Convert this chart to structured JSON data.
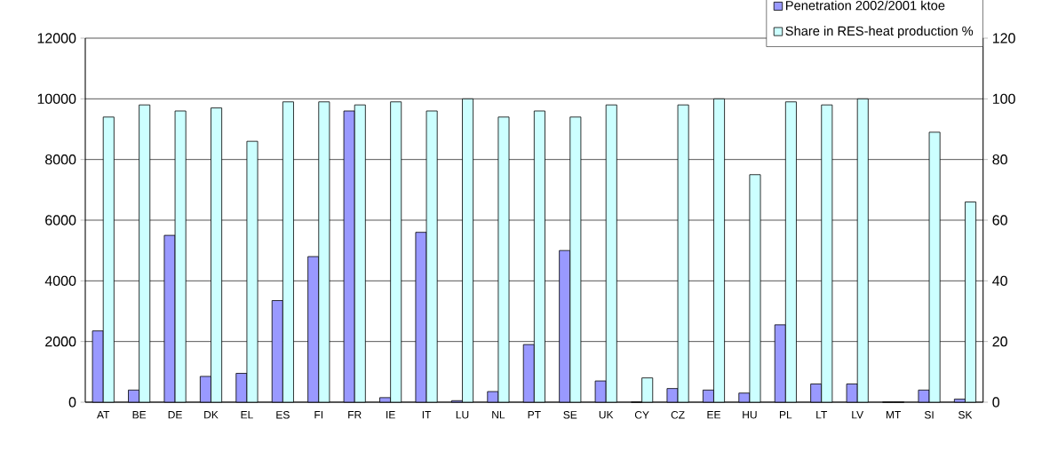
{
  "chart_data": {
    "type": "bar",
    "categories": [
      "AT",
      "BE",
      "DE",
      "DK",
      "EL",
      "ES",
      "FI",
      "FR",
      "IE",
      "IT",
      "LU",
      "NL",
      "PT",
      "SE",
      "UK",
      "CY",
      "CZ",
      "EE",
      "HU",
      "PL",
      "LT",
      "LV",
      "MT",
      "SI",
      "SK"
    ],
    "series": [
      {
        "name": "Penetration 2002/2001 ktoe",
        "color": "#9999ff",
        "axis": "y",
        "values": [
          2350,
          400,
          5500,
          850,
          950,
          3350,
          4800,
          9600,
          150,
          5600,
          50,
          350,
          1900,
          5000,
          700,
          0,
          450,
          400,
          300,
          2550,
          600,
          600,
          0,
          400,
          100
        ]
      },
      {
        "name": "Share in RES-heat production %",
        "color": "#ccffff",
        "axis": "y2",
        "values": [
          94,
          98,
          96,
          97,
          86,
          99,
          99,
          98,
          99,
          96,
          100,
          94,
          96,
          94,
          98,
          8,
          98,
          100,
          75,
          99,
          98,
          100,
          0,
          89,
          66
        ]
      }
    ],
    "ylim": [
      0,
      12000
    ],
    "yticks": [
      0,
      2000,
      4000,
      6000,
      8000,
      10000,
      12000
    ],
    "y2lim": [
      0,
      120
    ],
    "y2ticks": [
      0,
      20,
      40,
      60,
      80,
      100,
      120
    ],
    "grid": "y",
    "legend": "top right"
  }
}
